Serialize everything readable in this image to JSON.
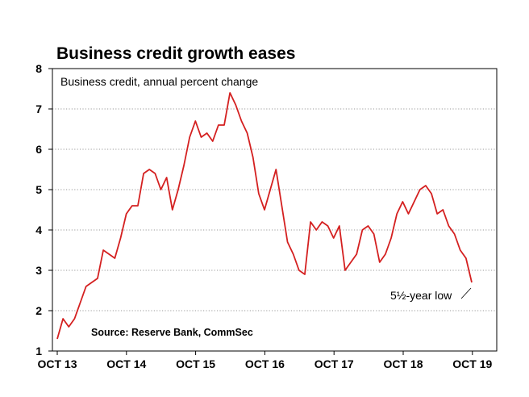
{
  "chart_data": {
    "type": "line",
    "title": "Business credit growth eases",
    "subtitle": "Business credit, annual percent change",
    "source": "Source: Reserve Bank, CommSec",
    "annotation": "5½-year low",
    "ylim": [
      1,
      8
    ],
    "y_ticks": [
      "1",
      "2",
      "3",
      "4",
      "5",
      "6",
      "7",
      "8"
    ],
    "x_ticks": [
      "OCT 13",
      "OCT 14",
      "OCT 15",
      "OCT 16",
      "OCT 17",
      "OCT 18",
      "OCT 19"
    ],
    "grid": true,
    "line_color": "#d42020",
    "series": [
      {
        "values": [
          1.3,
          1.8,
          1.6,
          1.8,
          2.2,
          2.6,
          2.7,
          2.8,
          3.5,
          3.4,
          3.3,
          3.8,
          4.4,
          4.6,
          4.6,
          5.4,
          5.5,
          5.4,
          5.0,
          5.3,
          4.5,
          5.0,
          5.6,
          6.3,
          6.7,
          6.3,
          6.4,
          6.2,
          6.6,
          6.6,
          7.4,
          7.1,
          6.7,
          6.4,
          5.8,
          4.9,
          4.5,
          5.0,
          5.5,
          4.6,
          3.7,
          3.4,
          3.0,
          2.9,
          4.2,
          4.0,
          4.2,
          4.1,
          3.8,
          4.1,
          3.0,
          3.2,
          3.4,
          4.0,
          4.1,
          3.9,
          3.2,
          3.4,
          3.8,
          4.4,
          4.7,
          4.4,
          4.7,
          5.0,
          5.1,
          4.9,
          4.4,
          4.5,
          4.1,
          3.9,
          3.5,
          3.3,
          2.7
        ]
      }
    ]
  }
}
